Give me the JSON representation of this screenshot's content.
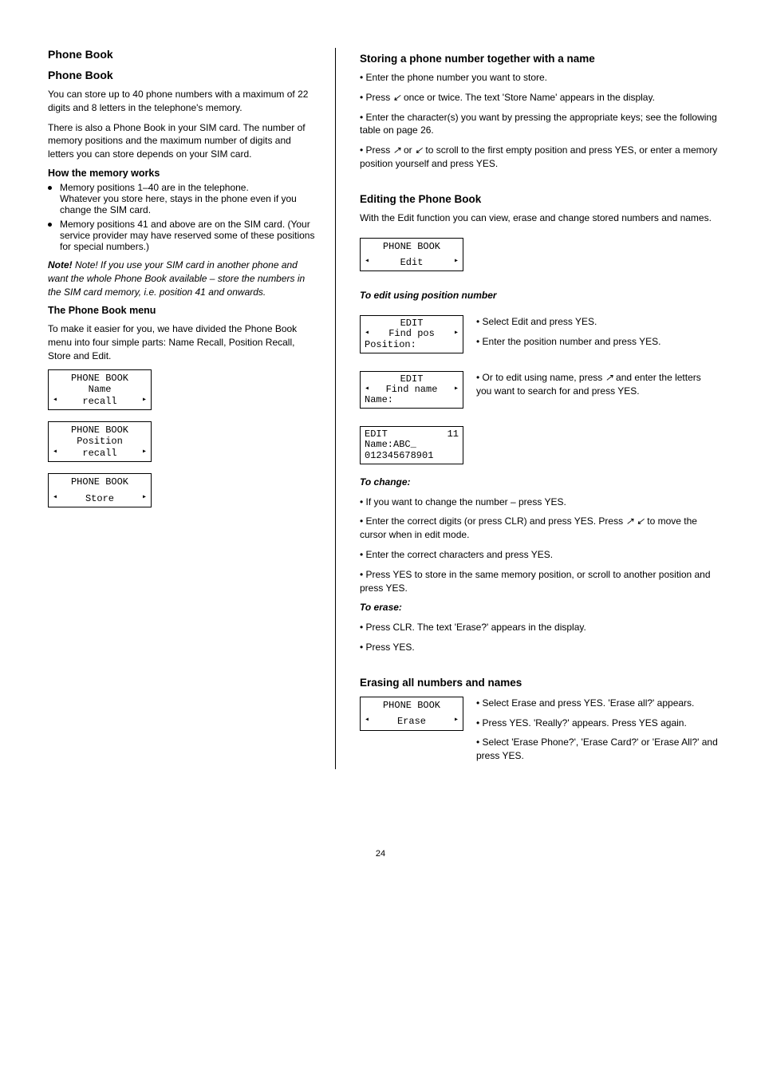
{
  "page_number": "24",
  "left": {
    "section_heading": "Phone Book",
    "title": "Phone Book",
    "intro1": "You can store up to 40 phone numbers with a maximum of 22 digits and 8 letters in the telephone's memory.",
    "intro2": "There is also a Phone Book in your SIM card. The number of memory positions and the maximum number of digits and letters you can store depends on your SIM card.",
    "memory_title": "How the memory works",
    "memory_b1_a": "Memory positions 1–40 are in the telephone.",
    "memory_b1_b": "Whatever you store here, stays in the phone even if you change the SIM card.",
    "memory_b2": "Memory positions 41 and above are on the SIM card. (Your service provider may have reserved some of these positions for special numbers.)",
    "note": "Note! If you use your SIM card in another phone and want the whole Phone Book available – store the numbers in the SIM card memory, i.e. position 41 and onwards.",
    "menu_title": "The Phone Book menu",
    "menu_para": "To make it easier for you, we have divided the Phone Book menu into four simple parts: Name Recall, Position Recall, Store and Edit.",
    "lcd1": {
      "line1": "PHONE BOOK",
      "line2": "Name",
      "line3l": "◂",
      "line3c": "recall",
      "line3r": "▸"
    },
    "lcd2": {
      "line1": "PHONE BOOK",
      "line2": "Position",
      "line3l": "◂",
      "line3c": "recall",
      "line3r": "▸"
    },
    "lcd3": {
      "line1": "PHONE BOOK",
      "line2l": "◂",
      "line2c": "Store",
      "line2r": "▸"
    }
  },
  "right": {
    "heading_a": "Storing a phone number together with a name",
    "a_s1": "• Enter the phone number you want to store.",
    "a_s2_pre": "• Press ",
    "a_s2_key": "↙",
    "a_s2_post": " once or twice. The text 'Store Name' appears in the display.",
    "a_s3": "• Enter the character(s) you want by pressing the appropriate keys; see the following table on page 26.",
    "a_s4_pre": "• Press ",
    "a_s4_key1": "↗",
    "a_s4_mid": " or ",
    "a_s4_key2": "↙",
    "a_s4_post": " to scroll to the first empty position and press YES, or enter a memory position yourself and press YES.",
    "heading_b": "Editing the Phone Book",
    "b_intro": "With the Edit function you can view, erase and change stored numbers and names.",
    "lcd_b1": {
      "line1": "PHONE BOOK",
      "line2l": "◂",
      "line2c": "Edit",
      "line2r": "▸"
    },
    "b_sub1": "To edit using position number",
    "lcd_b2": {
      "line1": "EDIT",
      "line2l": "◂",
      "line2c": "Find pos",
      "line2r": "▸",
      "line3": "Position:"
    },
    "lcd_b3": {
      "line1": "EDIT",
      "line2l": "◂",
      "line2c": "Find name",
      "line2r": "▸",
      "line3": "Name:"
    },
    "b2_s1": "• Select Edit and press YES.",
    "b2_s2": "• Enter the position number and press YES.",
    "b2_s3_pre": "• Or to edit using name, press ",
    "b2_s3_key": "↗",
    "b2_s3_post": " and enter the letters you want to search for and press YES.",
    "lcd_b4": {
      "line1l": "EDIT",
      "line1r": "11",
      "line2": "Name:ABC_",
      "line3": "012345678901"
    },
    "b_change_title": "To change:",
    "b_change_s1": "• If you want to change the number – press YES.",
    "b_change_s2_pre": "• Enter the correct digits (or press CLR) and press YES. Press ",
    "b_change_s2_post": " to move the cursor when in edit mode.",
    "b_change_s2_k1": "↗",
    "b_change_s2_k2": "↙",
    "b_change_s3": "• Enter the correct characters and press YES.",
    "b_change_s4": "• Press YES to store in the same memory position, or scroll to another position and press YES.",
    "b_erase_title": "To erase:",
    "b_erase_s1": "• Press CLR. The text 'Erase?' appears in the display.",
    "b_erase_s2": "• Press YES.",
    "heading_c": "Erasing all numbers and names",
    "lcd_c": {
      "line1": "PHONE BOOK",
      "line2l": "◂",
      "line2c": "Erase",
      "line2r": "▸"
    },
    "c_s1": "• Select Erase and press YES. 'Erase all?' appears.",
    "c_s2": "• Press YES. 'Really?' appears. Press YES again.",
    "c_s3": "• Select 'Erase Phone?', 'Erase Card?' or 'Erase All?' and press YES."
  }
}
